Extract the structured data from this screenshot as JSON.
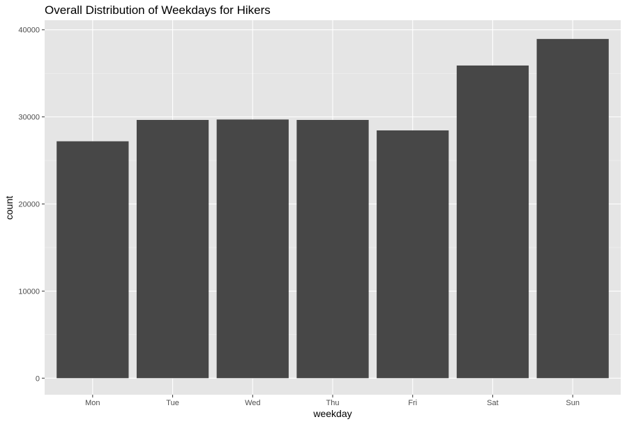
{
  "chart_data": {
    "type": "bar",
    "title": "Overall Distribution of Weekdays for Hikers",
    "xlabel": "weekday",
    "ylabel": "count",
    "categories": [
      "Mon",
      "Tue",
      "Wed",
      "Thu",
      "Fri",
      "Sat",
      "Sun"
    ],
    "values": [
      27200,
      29650,
      29700,
      29650,
      28450,
      35900,
      38950
    ],
    "ylim": [
      -1900,
      41100
    ],
    "yticks": [
      0,
      10000,
      20000,
      30000,
      40000
    ],
    "ytick_labels": [
      "0",
      "10000",
      "20000",
      "30000",
      "40000"
    ],
    "grid": true,
    "legend": "none",
    "colors": {
      "bar": "#474747",
      "panel_background": "#e5e5e5",
      "grid_major": "#ffffff",
      "grid_minor": "#f2f2f2",
      "tick": "#333333"
    }
  }
}
